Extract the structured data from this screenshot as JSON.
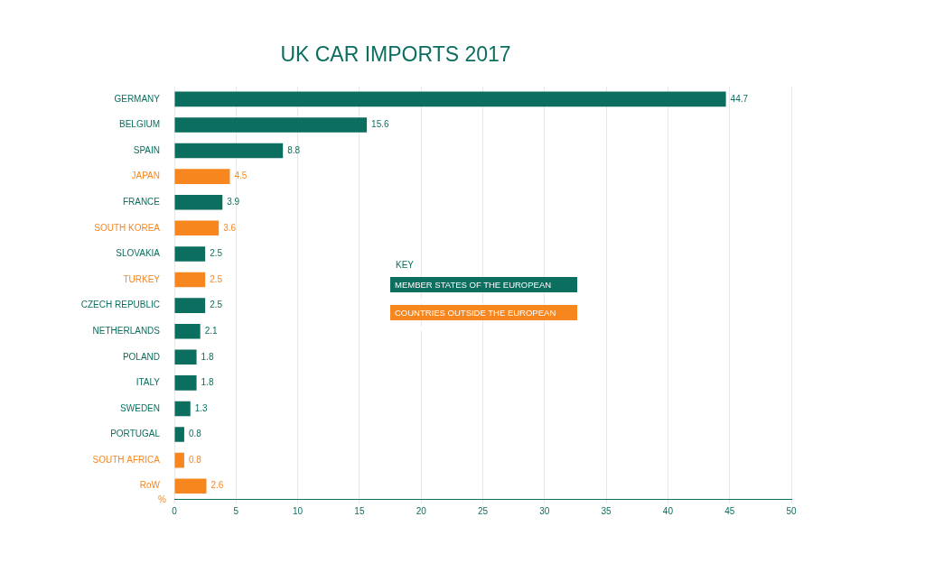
{
  "chart_data": {
    "type": "bar",
    "orientation": "horizontal",
    "title": "UK CAR IMPORTS 2017",
    "x_label": "%",
    "categories": [
      "GERMANY",
      "BELGIUM",
      "SPAIN",
      "JAPAN",
      "FRANCE",
      "SOUTH KOREA",
      "SLOVAKIA",
      "TURKEY",
      "CZECH REPUBLIC",
      "NETHERLANDS",
      "POLAND",
      "ITALY",
      "SWEDEN",
      "PORTUGAL",
      "SOUTH AFRICA",
      "RoW"
    ],
    "series": [
      {
        "name": "MEMBER STATES OF THE EUROPEAN UNION",
        "color": "#0b6e5f",
        "values": [
          44.7,
          15.6,
          8.8,
          null,
          3.9,
          null,
          2.5,
          null,
          2.5,
          2.1,
          1.8,
          1.8,
          1.3,
          0.8,
          null,
          null
        ]
      },
      {
        "name": "COUNTRIES OUTSIDE THE EUROPEAN UNION",
        "color": "#f7861f",
        "values": [
          null,
          null,
          null,
          4.5,
          null,
          3.6,
          null,
          2.5,
          null,
          null,
          null,
          null,
          null,
          null,
          0.8,
          2.6
        ]
      }
    ],
    "xlim": [
      0,
      50
    ],
    "xticks": [
      0,
      5,
      10,
      15,
      20,
      25,
      30,
      35,
      40,
      45,
      50
    ],
    "grid": true,
    "data_labels": true,
    "legend": "center",
    "legend_title": "KEY"
  }
}
